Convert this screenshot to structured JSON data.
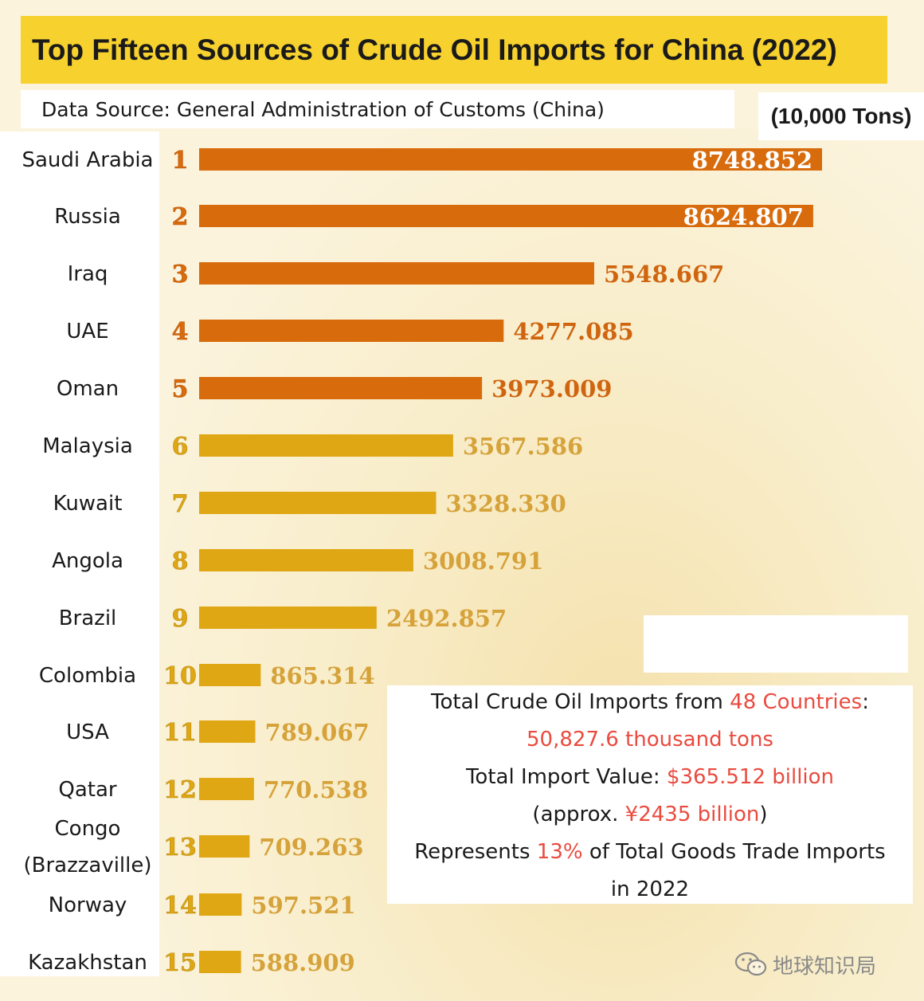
{
  "title": "Top Fifteen Sources of Crude Oil Imports for China (2022)",
  "source": "Data Source: General Administration of Customs (China)",
  "unit": "(10,000 Tons)",
  "colors": {
    "title_bg": "#f7d12e",
    "bar_top": "#d86b0c",
    "bar_rest": "#e0a714",
    "value_text_top": "#d06510",
    "value_text_rest": "#d6a23a",
    "value_inside_text": "#ffffff",
    "highlight": "#ea4b3f"
  },
  "chart_data": {
    "type": "bar",
    "orientation": "horizontal",
    "title": "Top Fifteen Sources of Crude Oil Imports for China (2022)",
    "unit": "(10,000 Tons)",
    "xlim": [
      0,
      10000
    ],
    "grid": false,
    "legend": "none",
    "categories": [
      {
        "rank": "1",
        "name": "Saudi Arabia"
      },
      {
        "rank": "2",
        "name": "Russia"
      },
      {
        "rank": "3",
        "name": "Iraq"
      },
      {
        "rank": "4",
        "name": "UAE"
      },
      {
        "rank": "5",
        "name": "Oman"
      },
      {
        "rank": "6",
        "name": "Malaysia"
      },
      {
        "rank": "7",
        "name": "Kuwait"
      },
      {
        "rank": "8",
        "name": "Angola"
      },
      {
        "rank": "9",
        "name": "Brazil"
      },
      {
        "rank": "10",
        "name": "Colombia"
      },
      {
        "rank": "11",
        "name": "USA"
      },
      {
        "rank": "12",
        "name": "Qatar"
      },
      {
        "rank": "13",
        "name": "Congo (Brazzaville)",
        "lines": [
          "Congo",
          "(Brazzaville)"
        ]
      },
      {
        "rank": "14",
        "name": "Norway"
      },
      {
        "rank": "15",
        "name": "Kazakhstan"
      }
    ],
    "values": [
      8748.852,
      8624.807,
      5548.667,
      4277.085,
      3973.009,
      3567.586,
      3328.33,
      3008.791,
      2492.857,
      865.314,
      789.067,
      770.538,
      709.263,
      597.521,
      588.909
    ],
    "value_labels": [
      "8748.852",
      "8624.807",
      "5548.667",
      "4277.085",
      "3973.009",
      "3567.586",
      "3328.330",
      "3008.791",
      "2492.857",
      "865.314",
      "789.067",
      "770.538",
      "709.263",
      "597.521",
      "588.909"
    ]
  },
  "summary": {
    "line1_pre": "Total Crude Oil Imports from ",
    "line1_hl": "48 Countries",
    "line1_post": ":",
    "line2_hl": "50,827.6 thousand tons",
    "line3_pre": "Total Import Value: ",
    "line3_hl": "$365.512 billion",
    "line4_pre": "(approx. ",
    "line4_hl": "¥2435 billion",
    "line4_post": ")",
    "line5_pre": "Represents ",
    "line5_hl": "13%",
    "line5_post": " of Total Goods Trade Imports",
    "line6": "in 2022"
  },
  "watermark": {
    "icon": "wechat-icon",
    "text": "地球知识局"
  }
}
